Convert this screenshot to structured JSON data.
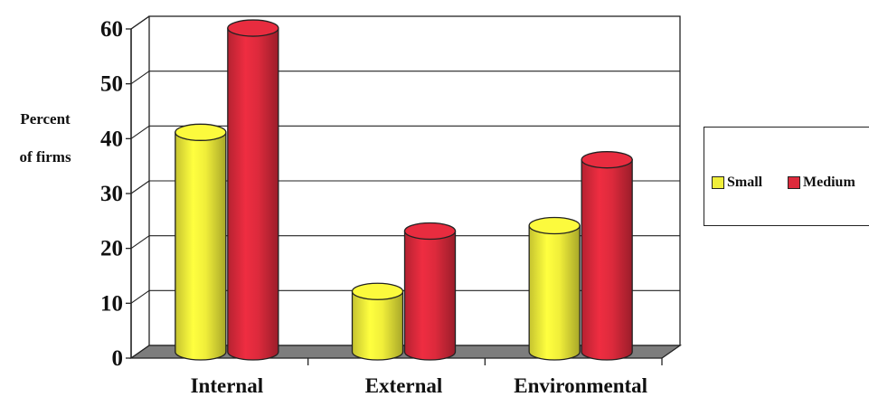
{
  "chart_data": {
    "type": "bar",
    "title": "",
    "xlabel": "",
    "ylabel_lines": [
      "Percent",
      "of firms"
    ],
    "categories": [
      "Internal",
      "External",
      "Environmental"
    ],
    "series": [
      {
        "name": "Small",
        "values": [
          40,
          11,
          23
        ],
        "color": "#f0ee3a"
      },
      {
        "name": "Medium",
        "values": [
          59,
          22,
          35
        ],
        "color": "#dd2a3c"
      }
    ],
    "ylim": [
      0,
      60
    ],
    "yticks": [
      "0",
      "10",
      "20",
      "30",
      "40",
      "50",
      "60"
    ],
    "grid": true,
    "legend_position": "right",
    "bar_shape": "cylinder-3d"
  }
}
